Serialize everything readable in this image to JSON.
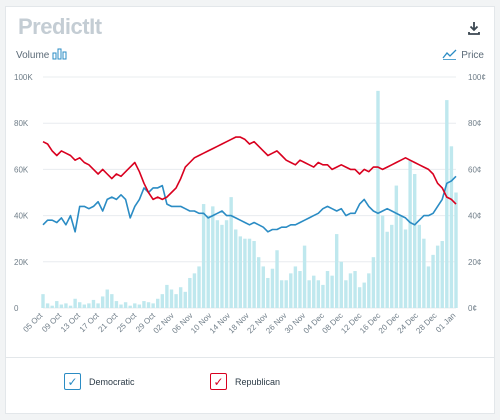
{
  "app": {
    "logo_text": "PredictIt"
  },
  "toolbar": {
    "download_icon": "download-icon"
  },
  "legend_left": {
    "label": "Volume",
    "icon": "bar-chart-icon"
  },
  "legend_right": {
    "label": "Price",
    "icon": "line-chart-icon"
  },
  "colors": {
    "democratic": "#2b8cc4",
    "republican": "#d9001f",
    "volume": "#bfe8ee",
    "grid": "#e8ecef"
  },
  "series_toggles": [
    {
      "label": "Democratic",
      "checked": true
    },
    {
      "label": "Republican",
      "checked": true
    }
  ],
  "chart_data": {
    "type": "line",
    "left_axis": {
      "ticks": [
        "0",
        "20K",
        "40K",
        "60K",
        "80K",
        "100K"
      ],
      "range": [
        0,
        100000
      ]
    },
    "right_axis": {
      "ticks": [
        "0¢",
        "20¢",
        "40¢",
        "60¢",
        "80¢",
        "100¢"
      ],
      "range": [
        0,
        100
      ]
    },
    "x_ticks": [
      "05 Oct",
      "09 Oct",
      "13 Oct",
      "17 Oct",
      "21 Oct",
      "25 Oct",
      "29 Oct",
      "02 Nov",
      "06 Nov",
      "10 Nov",
      "14 Nov",
      "18 Nov",
      "22 Nov",
      "26 Nov",
      "30 Nov",
      "04 Dec",
      "08 Dec",
      "12 Dec",
      "16 Dec",
      "20 Dec",
      "24 Dec",
      "28 Dec",
      "01 Jan"
    ],
    "days": 91,
    "volume": [
      6000,
      2000,
      1000,
      3000,
      1500,
      2000,
      1000,
      4000,
      2500,
      1500,
      2000,
      3500,
      2000,
      5000,
      8000,
      6000,
      3000,
      1500,
      2500,
      1000,
      2000,
      1500,
      3000,
      2500,
      2000,
      4000,
      6000,
      10000,
      8000,
      6000,
      9000,
      7000,
      13000,
      15000,
      18000,
      45000,
      40000,
      44000,
      38000,
      36000,
      38000,
      48000,
      34000,
      31000,
      30000,
      30000,
      29000,
      22000,
      18000,
      13000,
      17000,
      25000,
      12000,
      12000,
      15000,
      18000,
      16000,
      27000,
      12000,
      14000,
      12000,
      10000,
      16000,
      14000,
      32000,
      20000,
      12000,
      15000,
      16000,
      9000,
      11000,
      15000,
      22000,
      94000,
      40000,
      33000,
      36000,
      53000,
      40000,
      34000,
      64000,
      58000,
      36000,
      30000,
      18000,
      23000,
      27000,
      29000,
      90000,
      70000,
      50000
    ],
    "series": [
      {
        "name": "Democratic",
        "values": [
          36,
          38,
          38,
          37,
          39,
          36,
          40,
          33,
          44,
          44,
          43,
          44,
          46,
          42,
          47,
          48,
          47,
          49,
          47,
          39,
          44,
          47,
          52,
          50,
          52,
          52,
          53,
          45,
          44,
          44,
          44,
          43,
          42,
          42,
          41,
          41,
          39,
          40,
          41,
          42,
          40,
          40,
          39,
          38,
          37,
          36,
          37,
          36,
          35,
          33,
          34,
          34,
          35,
          35,
          36,
          36,
          37,
          38,
          39,
          40,
          41,
          43,
          44,
          43,
          42,
          43,
          40,
          41,
          41,
          45,
          47,
          44,
          42,
          41,
          42,
          43,
          42,
          41,
          40,
          39,
          37,
          36,
          38,
          40,
          40,
          41,
          44,
          47,
          54,
          55,
          57
        ]
      },
      {
        "name": "Republican",
        "values": [
          72,
          71,
          68,
          66,
          68,
          67,
          66,
          64,
          65,
          63,
          62,
          60,
          58,
          60,
          58,
          56,
          58,
          57,
          59,
          61,
          63,
          59,
          54,
          50,
          47,
          48,
          47,
          48,
          50,
          52,
          56,
          61,
          63,
          65,
          66,
          67,
          68,
          69,
          70,
          71,
          72,
          73,
          74,
          74,
          73,
          71,
          72,
          70,
          68,
          66,
          67,
          68,
          66,
          64,
          63,
          62,
          64,
          63,
          62,
          61,
          63,
          62,
          62,
          60,
          61,
          62,
          61,
          60,
          60,
          58,
          60,
          59,
          61,
          61,
          60,
          61,
          62,
          63,
          64,
          65,
          64,
          63,
          62,
          61,
          60,
          58,
          54,
          52,
          48,
          47,
          45
        ]
      }
    ]
  }
}
